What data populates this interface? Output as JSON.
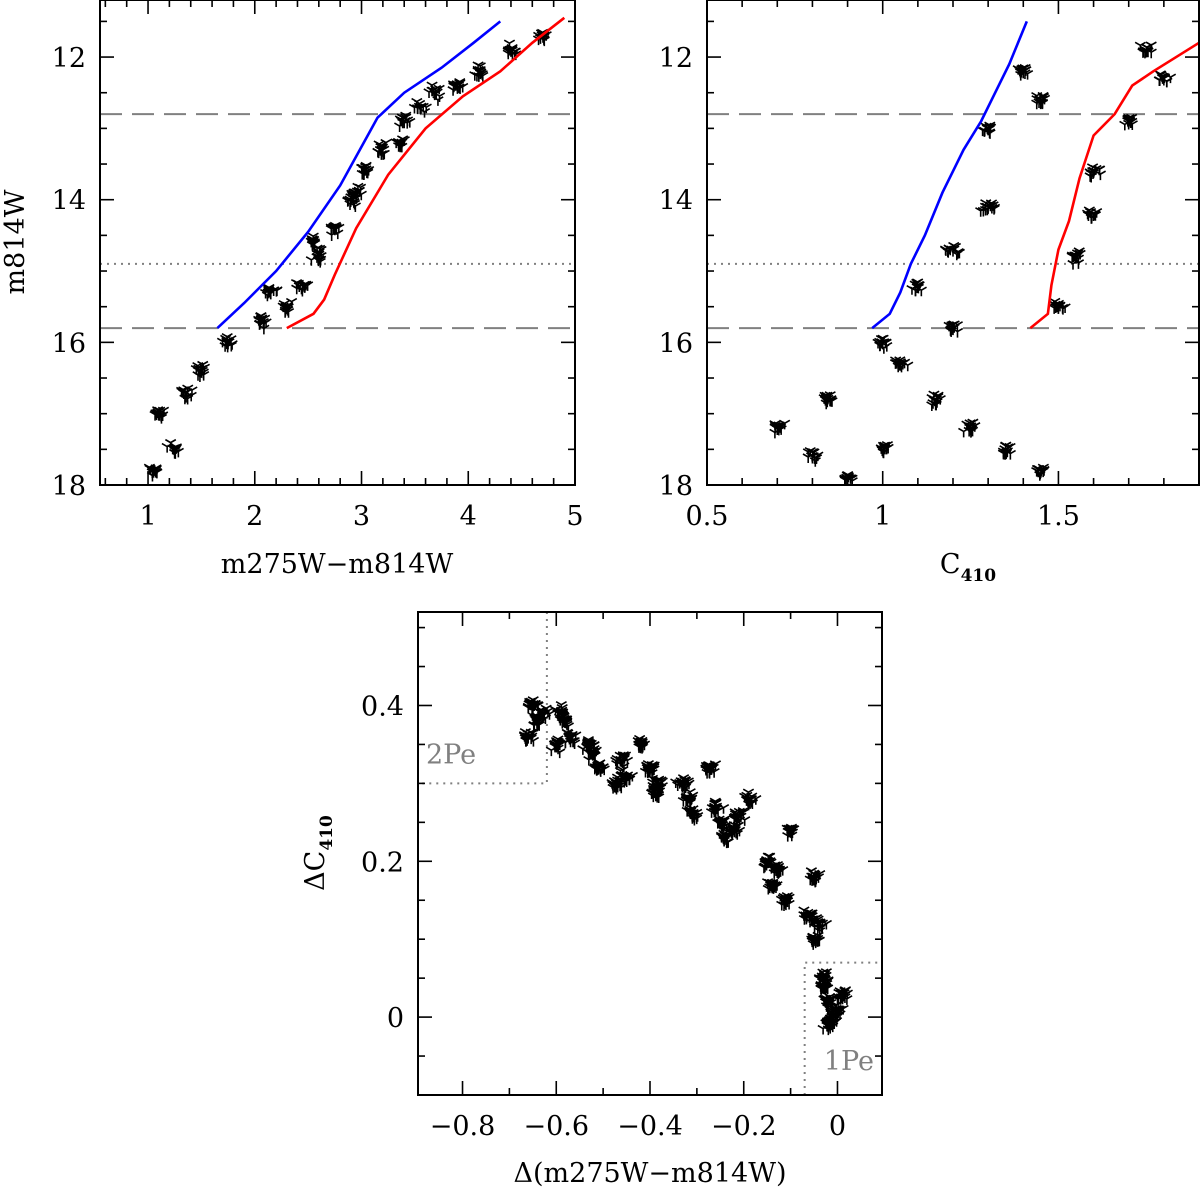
{
  "chart_data": [
    {
      "id": "cmd_color",
      "type": "scatter",
      "title": "",
      "xlabel": "m275W−m814W",
      "ylabel": "m814W",
      "xlim": [
        0.55,
        5.0
      ],
      "ylim": [
        18.0,
        11.2
      ],
      "y_inverted": true,
      "xticks": [
        1,
        2,
        3,
        4,
        5
      ],
      "xtick_labels": [
        "1",
        "2",
        "3",
        "4",
        "5"
      ],
      "yticks": [
        12,
        14,
        16,
        18
      ],
      "ytick_labels": [
        "12",
        "14",
        "16",
        "18"
      ],
      "hlines": [
        {
          "y": 12.8,
          "style": "dashed",
          "color": "#808080"
        },
        {
          "y": 14.9,
          "style": "dotted",
          "color": "#808080"
        },
        {
          "y": 15.8,
          "style": "dashed",
          "color": "#808080"
        }
      ],
      "series": [
        {
          "name": "blue fiducial",
          "kind": "line",
          "color": "#0000ff",
          "x": [
            1.65,
            1.9,
            2.2,
            2.5,
            2.8,
            3.15,
            3.4,
            3.75,
            4.05,
            4.3
          ],
          "y": [
            15.8,
            15.45,
            15.0,
            14.45,
            13.8,
            12.85,
            12.5,
            12.15,
            11.8,
            11.5
          ]
        },
        {
          "name": "red fiducial",
          "kind": "line",
          "color": "#ff0000",
          "x": [
            2.3,
            2.55,
            2.65,
            2.75,
            2.95,
            3.25,
            3.6,
            3.95,
            4.3,
            4.6,
            4.9
          ],
          "y": [
            15.8,
            15.6,
            15.4,
            15.05,
            14.4,
            13.65,
            13.0,
            12.55,
            12.2,
            11.8,
            11.45
          ]
        },
        {
          "name": "stars (sample)",
          "kind": "scatter",
          "marker": "tri-down",
          "x": [
            1.05,
            1.25,
            1.1,
            1.35,
            1.5,
            1.75,
            2.05,
            2.3,
            2.45,
            2.6,
            2.75,
            2.9,
            3.05,
            3.2,
            3.4,
            3.55,
            3.7,
            3.9,
            4.1,
            4.4,
            4.7,
            2.15,
            2.55,
            2.95,
            3.35
          ],
          "y": [
            17.8,
            17.5,
            17.0,
            16.7,
            16.4,
            16.0,
            15.7,
            15.5,
            15.2,
            14.8,
            14.4,
            14.0,
            13.6,
            13.3,
            12.9,
            12.7,
            12.5,
            12.4,
            12.2,
            11.9,
            11.7,
            15.3,
            14.6,
            13.9,
            13.2
          ]
        }
      ]
    },
    {
      "id": "cmd_c410",
      "type": "scatter",
      "title": "",
      "xlabel": "C",
      "xlabel_subscript": "410",
      "ylabel": "",
      "xlim": [
        0.5,
        1.9
      ],
      "ylim": [
        18.0,
        11.2
      ],
      "y_inverted": true,
      "xticks": [
        0.5,
        1,
        1.5
      ],
      "xtick_labels": [
        "0.5",
        "1",
        "1.5"
      ],
      "yticks": [
        12,
        14,
        16,
        18
      ],
      "ytick_labels": [
        "12",
        "14",
        "16",
        "18"
      ],
      "hlines": [
        {
          "y": 12.8,
          "style": "dashed",
          "color": "#808080"
        },
        {
          "y": 14.9,
          "style": "dotted",
          "color": "#808080"
        },
        {
          "y": 15.8,
          "style": "dashed",
          "color": "#808080"
        }
      ],
      "series": [
        {
          "name": "blue fiducial",
          "kind": "line",
          "color": "#0000ff",
          "x": [
            0.97,
            1.02,
            1.05,
            1.08,
            1.12,
            1.17,
            1.2,
            1.23,
            1.28,
            1.32,
            1.36,
            1.41
          ],
          "y": [
            15.8,
            15.6,
            15.3,
            14.9,
            14.5,
            13.9,
            13.6,
            13.3,
            12.9,
            12.5,
            12.1,
            11.5
          ]
        },
        {
          "name": "red fiducial",
          "kind": "line",
          "color": "#ff0000",
          "x": [
            1.42,
            1.47,
            1.48,
            1.5,
            1.53,
            1.56,
            1.6,
            1.66,
            1.71,
            1.77,
            1.9
          ],
          "y": [
            15.8,
            15.6,
            15.2,
            14.7,
            14.3,
            13.7,
            13.1,
            12.8,
            12.4,
            12.2,
            11.8
          ]
        },
        {
          "name": "stars (sample)",
          "kind": "scatter",
          "marker": "tri-down",
          "x": [
            0.7,
            0.8,
            0.9,
            1.0,
            0.85,
            1.05,
            1.15,
            1.25,
            1.35,
            1.45,
            1.55,
            1.6,
            1.7,
            1.8,
            1.1,
            1.2,
            1.3,
            1.0,
            1.5,
            1.6,
            1.3,
            1.4,
            1.2,
            1.45,
            1.75
          ],
          "y": [
            17.2,
            17.6,
            17.9,
            17.5,
            16.8,
            16.3,
            16.8,
            17.2,
            17.5,
            17.8,
            14.8,
            13.6,
            12.9,
            12.3,
            15.2,
            14.7,
            14.1,
            16.0,
            15.5,
            14.2,
            13.0,
            12.2,
            15.8,
            12.6,
            11.9
          ]
        }
      ]
    },
    {
      "id": "chromosome_map",
      "type": "scatter",
      "title": "",
      "xlabel": "Δ(m275W−m814W)",
      "ylabel": "ΔC",
      "ylabel_subscript": "410",
      "xlim": [
        -0.895,
        0.095
      ],
      "ylim": [
        -0.1,
        0.52
      ],
      "xticks": [
        -0.8,
        -0.6,
        -0.4,
        -0.2,
        0
      ],
      "xtick_labels": [
        "−0.8",
        "−0.6",
        "−0.4",
        "−0.2",
        "0"
      ],
      "yticks": [
        0,
        0.2,
        0.4
      ],
      "ytick_labels": [
        "0",
        "0.2",
        "0.4"
      ],
      "regions": [
        {
          "label": "2Pe",
          "x_max": -0.62,
          "y_min": 0.3,
          "color": "#808080",
          "style": "dotted"
        },
        {
          "label": "1Pe",
          "x_min": -0.07,
          "y_max": 0.07,
          "color": "#808080",
          "style": "dotted"
        }
      ],
      "series": [
        {
          "name": "stars",
          "kind": "scatter",
          "marker": "tri-down",
          "x": [
            -0.65,
            -0.64,
            -0.66,
            -0.63,
            -0.58,
            -0.57,
            -0.6,
            -0.59,
            -0.52,
            -0.51,
            -0.53,
            -0.46,
            -0.45,
            -0.47,
            -0.4,
            -0.39,
            -0.38,
            -0.42,
            -0.32,
            -0.31,
            -0.33,
            -0.26,
            -0.25,
            -0.24,
            -0.22,
            -0.21,
            -0.15,
            -0.14,
            -0.13,
            -0.11,
            -0.06,
            -0.05,
            -0.04,
            -0.03,
            -0.02,
            -0.01,
            0.0,
            0.01,
            -0.02,
            -0.03,
            -0.27,
            -0.19,
            -0.1,
            -0.05
          ],
          "y": [
            0.4,
            0.38,
            0.36,
            0.39,
            0.38,
            0.36,
            0.35,
            0.39,
            0.34,
            0.32,
            0.35,
            0.33,
            0.31,
            0.3,
            0.32,
            0.29,
            0.3,
            0.35,
            0.28,
            0.26,
            0.3,
            0.27,
            0.25,
            0.23,
            0.24,
            0.26,
            0.2,
            0.17,
            0.19,
            0.15,
            0.13,
            0.1,
            0.12,
            0.04,
            0.02,
            0.0,
            0.01,
            0.03,
            -0.01,
            0.05,
            0.32,
            0.28,
            0.24,
            0.18
          ]
        }
      ]
    }
  ]
}
